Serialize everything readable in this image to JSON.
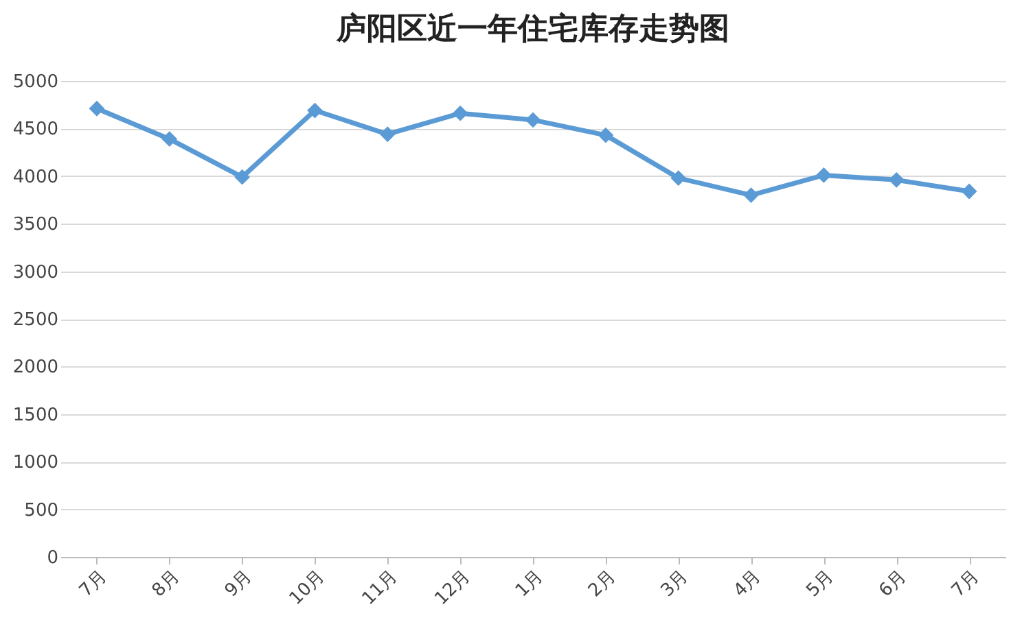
{
  "chart_data": {
    "type": "line",
    "title": "庐阳区近一年住宅库存走势图",
    "categories": [
      "7月",
      "8月",
      "9月",
      "10月",
      "11月",
      "12月",
      "1月",
      "2月",
      "3月",
      "4月",
      "5月",
      "6月",
      "7月"
    ],
    "series": [
      {
        "color": "#5b9bd5",
        "values": [
          4710,
          4390,
          3990,
          4690,
          4440,
          4660,
          4590,
          4430,
          3980,
          3800,
          4010,
          3960,
          3840
        ]
      }
    ],
    "ylim": [
      0,
      5000
    ],
    "yticks": [
      0,
      500,
      1000,
      1500,
      2000,
      2500,
      3000,
      3500,
      4000,
      4500,
      5000
    ],
    "grid": "y",
    "marker": "diamond",
    "line_style": "solid"
  }
}
